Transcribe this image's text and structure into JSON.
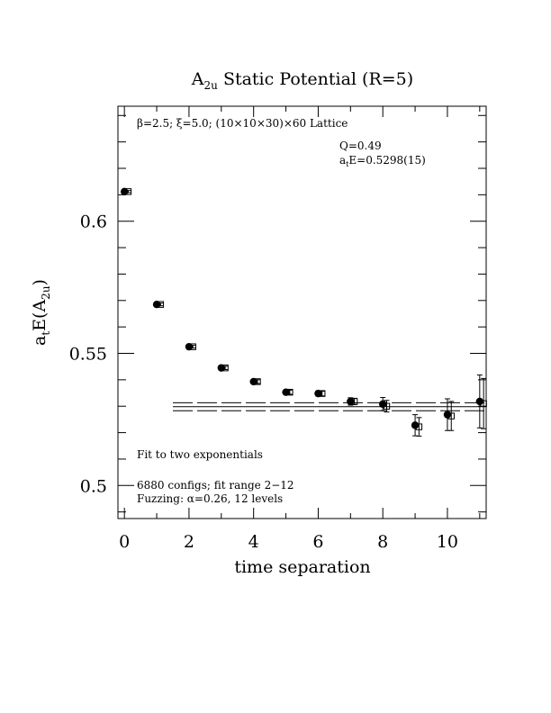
{
  "chart_data": {
    "type": "scatter",
    "title_main": "A",
    "title_sub": "2u",
    "title_rest": " Static Potential (R=5)",
    "xlabel": "time separation",
    "ylabel_main": "a",
    "ylabel_sub_t": "t",
    "ylabel_mid": "E(A",
    "ylabel_sub_2u": "2u",
    "ylabel_end": ")",
    "xlim": [
      -0.2,
      11.2
    ],
    "ylim": [
      0.4875,
      0.6435
    ],
    "x_ticks": [
      0,
      2,
      4,
      6,
      8,
      10
    ],
    "x_tick_labels": [
      "0",
      "2",
      "4",
      "6",
      "8",
      "10"
    ],
    "y_ticks": [
      0.5,
      0.55,
      0.6
    ],
    "y_tick_labels": [
      "0.5",
      "0.55",
      "0.6"
    ],
    "annotations": {
      "lattice": "β=2.5; ξ=5.0; (10×10×30)×60 Lattice",
      "q": "Q=0.49",
      "energy_main": "a",
      "energy_sub": "t",
      "energy_rest": "E=0.5298(15)",
      "fit": "Fit to two exponentials",
      "configs": "6880 configs; fit range 2−12",
      "fuzzing": "Fuzzing: α=0.26, 12 levels"
    },
    "series": [
      {
        "marker": "filled-circle",
        "x": [
          0,
          1,
          2,
          3,
          4,
          5,
          6,
          7,
          8,
          9,
          10,
          11
        ],
        "values": [
          0.6112,
          0.5685,
          0.5525,
          0.5445,
          0.5393,
          0.5353,
          0.5348,
          0.5318,
          0.5308,
          0.5228,
          0.5268,
          0.5318
        ],
        "errors": [
          0.0004,
          0.0005,
          0.0005,
          0.0006,
          0.0007,
          0.0008,
          0.0009,
          0.0014,
          0.0025,
          0.004,
          0.006,
          0.01
        ]
      },
      {
        "marker": "open-square",
        "x": [
          0.12,
          1.12,
          2.12,
          3.12,
          4.12,
          5.12,
          6.12,
          7.12,
          8.12,
          9.12,
          10.12,
          11.12
        ],
        "values": [
          0.6112,
          0.5685,
          0.5525,
          0.5445,
          0.5393,
          0.5353,
          0.5348,
          0.5318,
          0.53,
          0.5222,
          0.5263,
          0.531
        ],
        "errors": [
          0.0004,
          0.0005,
          0.0005,
          0.0006,
          0.0007,
          0.0008,
          0.0009,
          0.0012,
          0.0022,
          0.0035,
          0.0055,
          0.0095
        ]
      }
    ],
    "fit": {
      "value": 0.5298,
      "error": 0.0015,
      "x_range": [
        1.5,
        11.2
      ]
    },
    "grid": false
  }
}
